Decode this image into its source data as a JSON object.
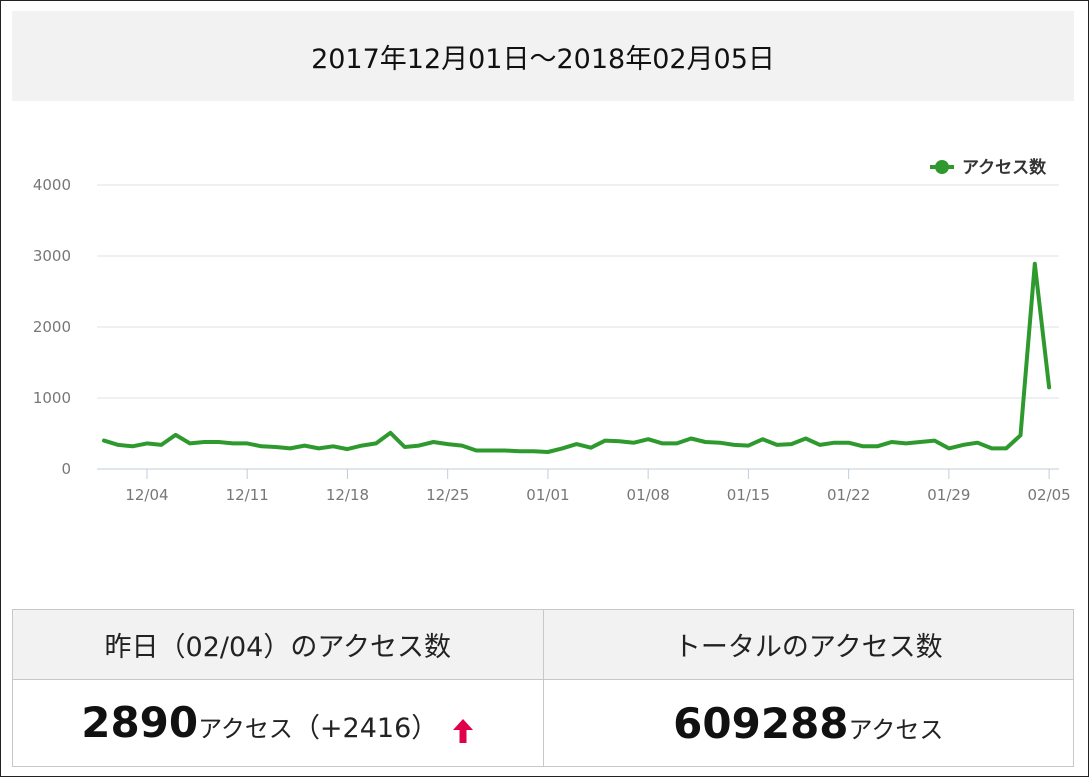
{
  "header": {
    "title": "2017年12月01日〜2018年02月05日"
  },
  "chart_data": {
    "type": "line",
    "ylim": [
      0,
      4000
    ],
    "yticks": [
      0,
      1000,
      2000,
      3000,
      4000
    ],
    "xtick_labels": [
      "12/04",
      "12/11",
      "12/18",
      "12/25",
      "01/01",
      "01/08",
      "01/15",
      "01/22",
      "01/29",
      "02/05"
    ],
    "legend": {
      "position": "top-right"
    },
    "grid": true,
    "color": "#2e9a2e",
    "series": [
      {
        "name": "アクセス数",
        "x": [
          "12/01",
          "12/02",
          "12/03",
          "12/04",
          "12/05",
          "12/06",
          "12/07",
          "12/08",
          "12/09",
          "12/10",
          "12/11",
          "12/12",
          "12/13",
          "12/14",
          "12/15",
          "12/16",
          "12/17",
          "12/18",
          "12/19",
          "12/20",
          "12/21",
          "12/22",
          "12/23",
          "12/24",
          "12/25",
          "12/26",
          "12/27",
          "12/28",
          "12/29",
          "12/30",
          "12/31",
          "01/01",
          "01/02",
          "01/03",
          "01/04",
          "01/05",
          "01/06",
          "01/07",
          "01/08",
          "01/09",
          "01/10",
          "01/11",
          "01/12",
          "01/13",
          "01/14",
          "01/15",
          "01/16",
          "01/17",
          "01/18",
          "01/19",
          "01/20",
          "01/21",
          "01/22",
          "01/23",
          "01/24",
          "01/25",
          "01/26",
          "01/27",
          "01/28",
          "01/29",
          "01/30",
          "01/31",
          "02/01",
          "02/02",
          "02/03",
          "02/04",
          "02/05"
        ],
        "values": [
          400,
          340,
          320,
          360,
          340,
          480,
          360,
          380,
          380,
          360,
          360,
          320,
          310,
          290,
          330,
          290,
          320,
          280,
          330,
          360,
          510,
          310,
          330,
          380,
          350,
          330,
          260,
          260,
          260,
          250,
          250,
          240,
          290,
          350,
          300,
          400,
          390,
          370,
          420,
          360,
          360,
          430,
          380,
          370,
          340,
          330,
          420,
          340,
          350,
          430,
          340,
          370,
          370,
          320,
          320,
          380,
          360,
          380,
          400,
          290,
          340,
          370,
          290,
          290,
          474,
          2890,
          1150
        ]
      }
    ]
  },
  "stats": {
    "yesterday_label": "昨日（02/04）のアクセス数",
    "total_label": "トータルのアクセス数",
    "yesterday_value": "2890",
    "yesterday_unit": "アクセス",
    "yesterday_diff": "（+2416）",
    "total_value": "609288",
    "total_unit": "アクセス",
    "arrow_icon": "up-arrow-icon",
    "arrow_color": "#e0004a"
  }
}
